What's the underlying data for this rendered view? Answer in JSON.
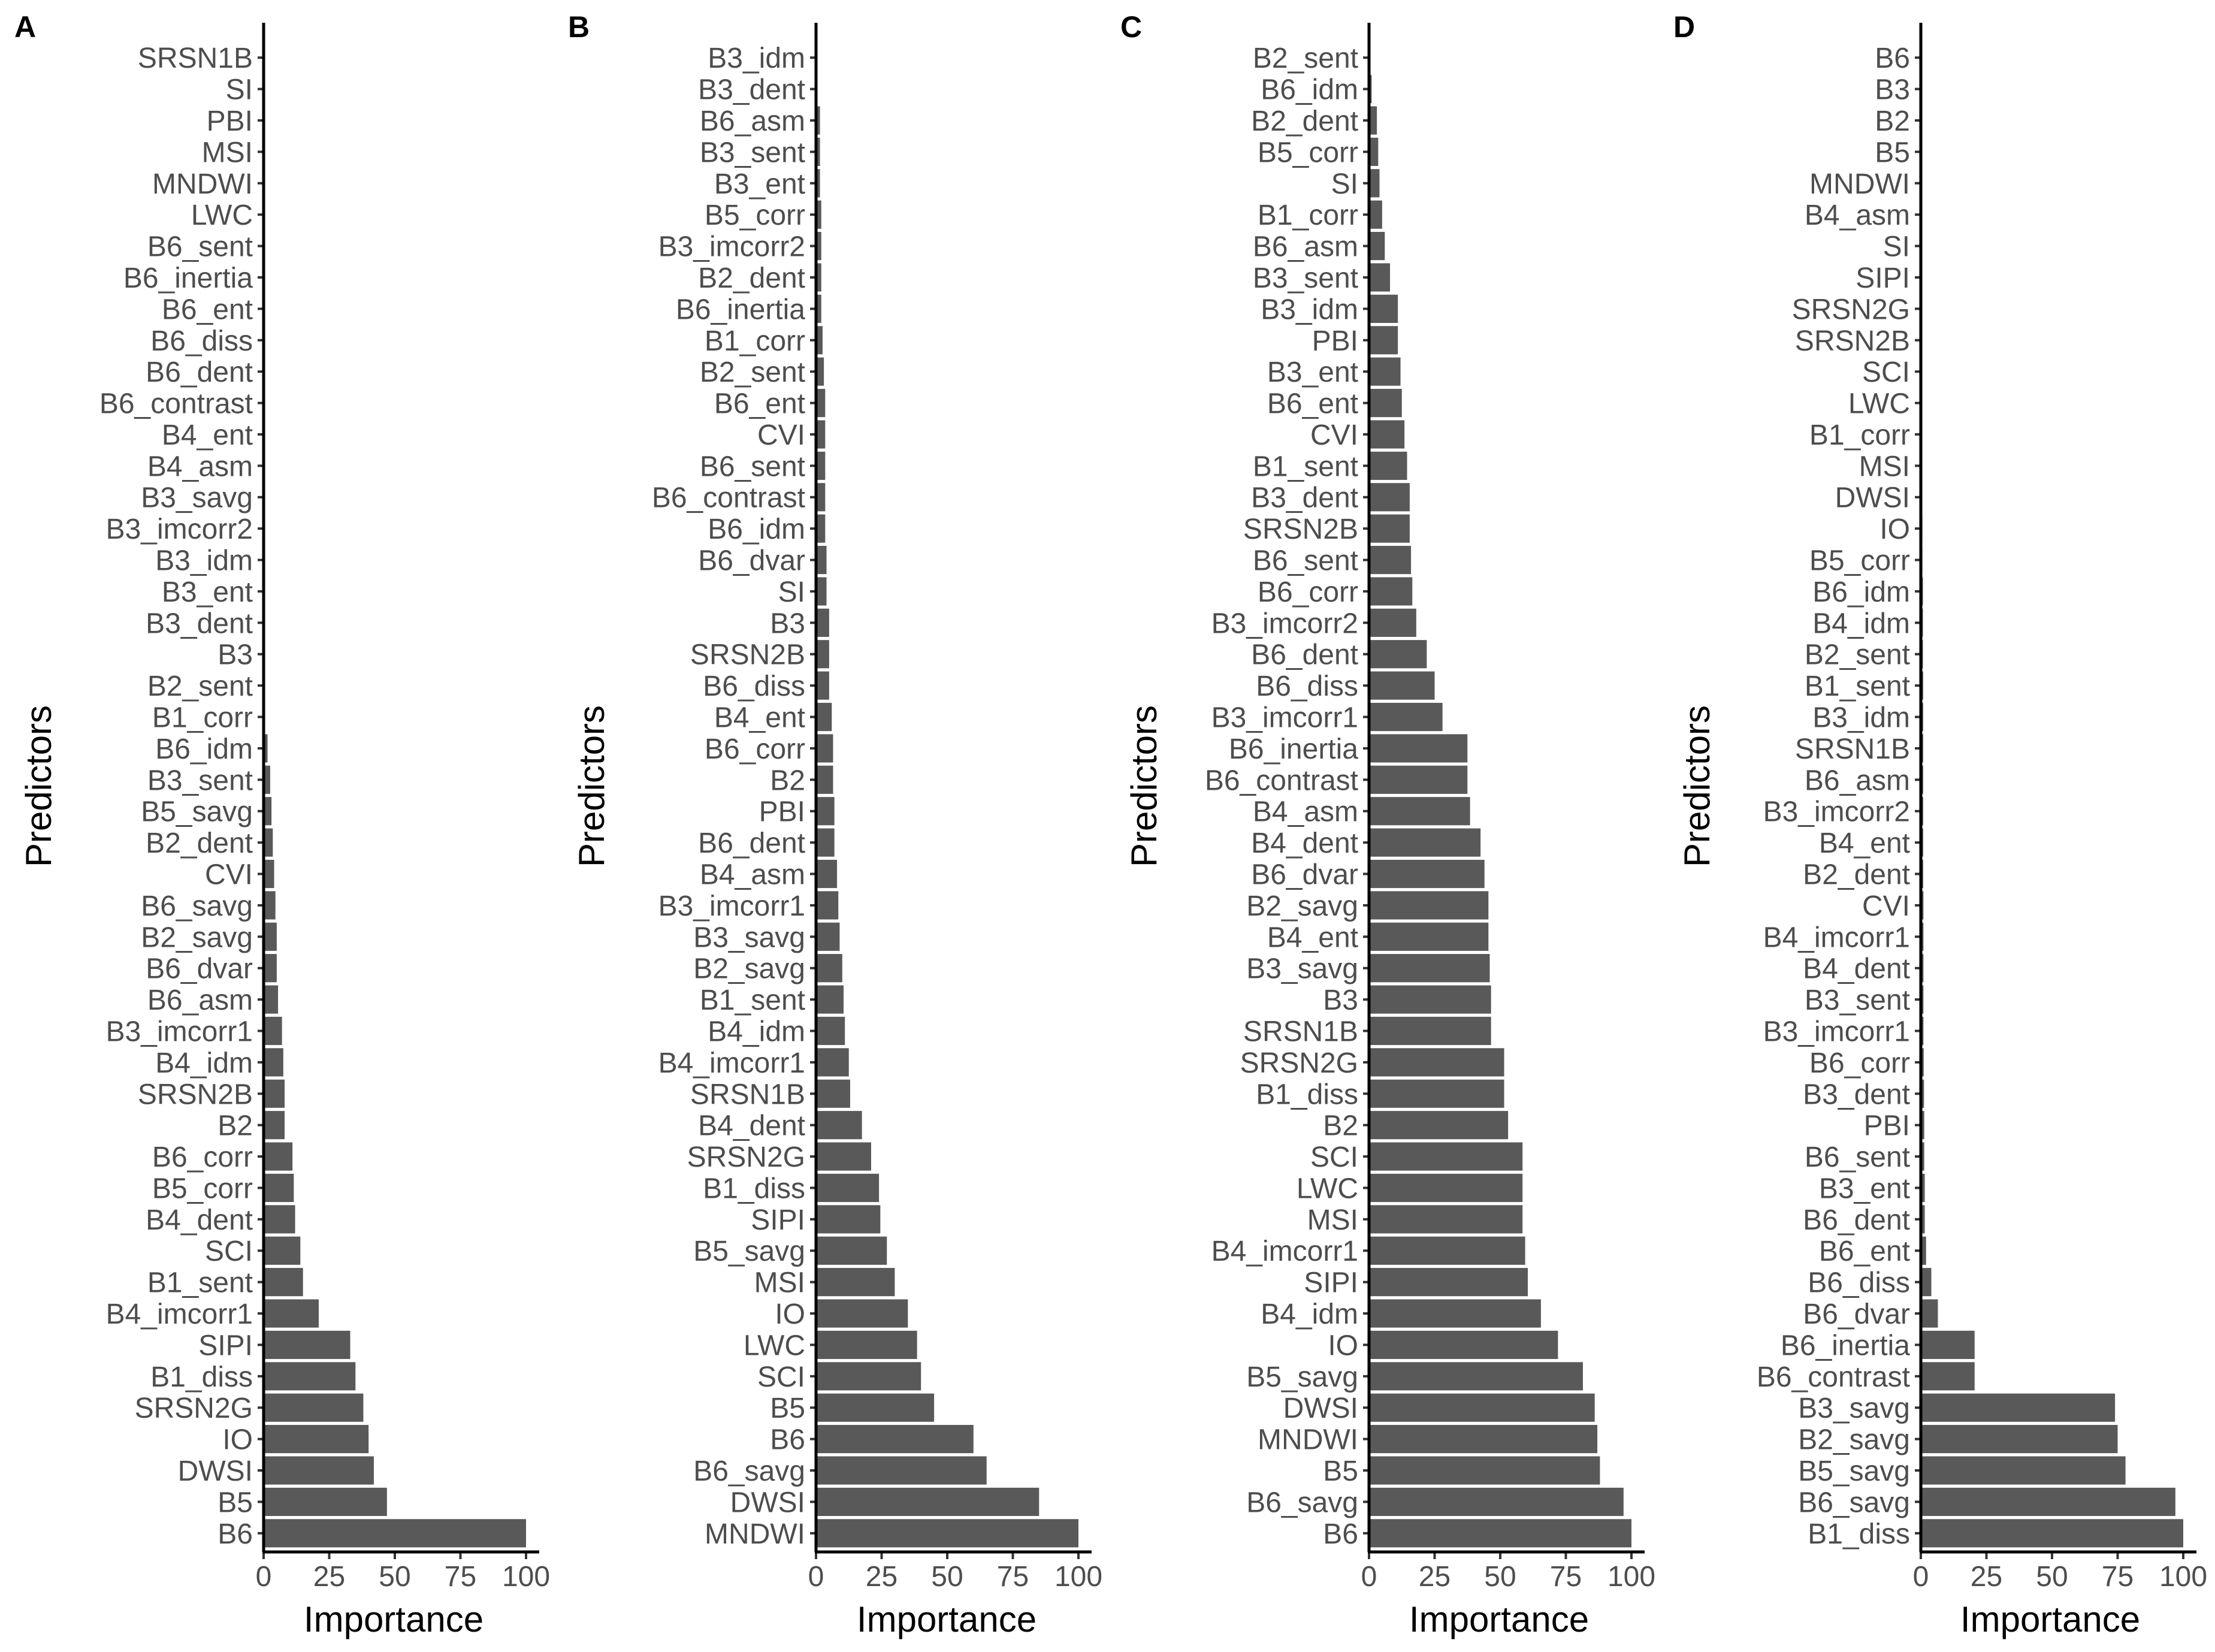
{
  "figure": {
    "x_axis_title": "Importance",
    "y_axis_title": "Predictors"
  },
  "colors": {
    "bar": "#595959",
    "axis": "#000000",
    "tick_text": "#4d4d4d"
  },
  "chart_data": [
    {
      "type": "bar",
      "orientation": "horizontal",
      "panel": "A",
      "xlabel": "Importance",
      "ylabel": "Predictors",
      "xlim": [
        0,
        100
      ],
      "xticks": [
        0,
        25,
        50,
        75,
        100
      ],
      "categories": [
        "SRSN1B",
        "SI",
        "PBI",
        "MSI",
        "MNDWI",
        "LWC",
        "B6_sent",
        "B6_inertia",
        "B6_ent",
        "B6_diss",
        "B6_dent",
        "B6_contrast",
        "B4_ent",
        "B4_asm",
        "B3_savg",
        "B3_imcorr2",
        "B3_idm",
        "B3_ent",
        "B3_dent",
        "B3",
        "B2_sent",
        "B1_corr",
        "B6_idm",
        "B3_sent",
        "B5_savg",
        "B2_dent",
        "CVI",
        "B6_savg",
        "B2_savg",
        "B6_dvar",
        "B6_asm",
        "B3_imcorr1",
        "B4_idm",
        "SRSN2B",
        "B2",
        "B6_corr",
        "B5_corr",
        "B4_dent",
        "SCI",
        "B1_sent",
        "B4_imcorr1",
        "SIPI",
        "B1_diss",
        "SRSN2G",
        "IO",
        "DWSI",
        "B5",
        "B6"
      ],
      "values": [
        0,
        0,
        0,
        0,
        0,
        0,
        0,
        0,
        0,
        0,
        0,
        0,
        0,
        0,
        0,
        0,
        0,
        0,
        0,
        0,
        0,
        0,
        1.5,
        2.5,
        3,
        3.5,
        4,
        4.5,
        5,
        5,
        5.5,
        7,
        7.5,
        8,
        8,
        11,
        11.5,
        12,
        14,
        15,
        21,
        33,
        35,
        38,
        40,
        42,
        47,
        100
      ]
    },
    {
      "type": "bar",
      "orientation": "horizontal",
      "panel": "B",
      "xlabel": "Importance",
      "ylabel": "Predictors",
      "xlim": [
        0,
        100
      ],
      "xticks": [
        0,
        25,
        50,
        75,
        100
      ],
      "categories": [
        "B3_idm",
        "B3_dent",
        "B6_asm",
        "B3_sent",
        "B3_ent",
        "B5_corr",
        "B3_imcorr2",
        "B2_dent",
        "B6_inertia",
        "B1_corr",
        "B2_sent",
        "B6_ent",
        "CVI",
        "B6_sent",
        "B6_contrast",
        "B6_idm",
        "B6_dvar",
        "SI",
        "B3",
        "SRSN2B",
        "B6_diss",
        "B4_ent",
        "B6_corr",
        "B2",
        "PBI",
        "B6_dent",
        "B4_asm",
        "B3_imcorr1",
        "B3_savg",
        "B2_savg",
        "B1_sent",
        "B4_idm",
        "B4_imcorr1",
        "SRSN1B",
        "B4_dent",
        "SRSN2G",
        "B1_diss",
        "SIPI",
        "B5_savg",
        "MSI",
        "IO",
        "LWC",
        "SCI",
        "B5",
        "B6",
        "B6_savg",
        "DWSI",
        "MNDWI"
      ],
      "values": [
        0,
        0,
        1.5,
        1.5,
        1.5,
        2,
        2,
        2,
        2,
        2.5,
        3,
        3.5,
        3.5,
        3.5,
        3.5,
        3.5,
        4,
        4,
        5,
        5,
        5,
        6,
        6.5,
        6.5,
        7,
        7,
        8,
        8.5,
        9,
        10,
        10.5,
        11,
        12.5,
        13,
        17.5,
        21,
        24,
        24.5,
        27,
        30,
        35,
        38.5,
        40,
        45,
        60,
        65,
        85,
        100
      ]
    },
    {
      "type": "bar",
      "orientation": "horizontal",
      "panel": "C",
      "xlabel": "Importance",
      "ylabel": "Predictors",
      "xlim": [
        0,
        100
      ],
      "xticks": [
        0,
        25,
        50,
        75,
        100
      ],
      "categories": [
        "B2_sent",
        "B6_idm",
        "B2_dent",
        "B5_corr",
        "SI",
        "B1_corr",
        "B6_asm",
        "B3_sent",
        "B3_idm",
        "PBI",
        "B3_ent",
        "B6_ent",
        "CVI",
        "B1_sent",
        "B3_dent",
        "SRSN2B",
        "B6_sent",
        "B6_corr",
        "B3_imcorr2",
        "B6_dent",
        "B6_diss",
        "B3_imcorr1",
        "B6_inertia",
        "B6_contrast",
        "B4_asm",
        "B4_dent",
        "B6_dvar",
        "B2_savg",
        "B4_ent",
        "B3_savg",
        "B3",
        "SRSN1B",
        "SRSN2G",
        "B1_diss",
        "B2",
        "SCI",
        "LWC",
        "MSI",
        "B4_imcorr1",
        "SIPI",
        "B4_idm",
        "IO",
        "B5_savg",
        "DWSI",
        "MNDWI",
        "B5",
        "B6_savg",
        "B6"
      ],
      "values": [
        0,
        1,
        3,
        3.5,
        4,
        5,
        6,
        8,
        11,
        11,
        12,
        12.5,
        13.5,
        14.5,
        15.5,
        15.5,
        16,
        16.5,
        18,
        22,
        25,
        28,
        37.5,
        37.5,
        38.5,
        42.5,
        44,
        45.5,
        45.5,
        46,
        46.5,
        46.5,
        51.5,
        51.5,
        53,
        58.5,
        58.5,
        58.5,
        59.5,
        60.5,
        65.5,
        72,
        81.5,
        86,
        87,
        88,
        97,
        100
      ]
    },
    {
      "type": "bar",
      "orientation": "horizontal",
      "panel": "D",
      "xlabel": "Importance",
      "ylabel": "Predictors",
      "xlim": [
        0,
        100
      ],
      "xticks": [
        0,
        25,
        50,
        75,
        100
      ],
      "categories": [
        "B6",
        "B3",
        "B2",
        "B5",
        "MNDWI",
        "B4_asm",
        "SI",
        "SIPI",
        "SRSN2G",
        "SRSN2B",
        "SCI",
        "LWC",
        "B1_corr",
        "MSI",
        "DWSI",
        "IO",
        "B5_corr",
        "B6_idm",
        "B4_idm",
        "B2_sent",
        "B1_sent",
        "B3_idm",
        "SRSN1B",
        "B6_asm",
        "B3_imcorr2",
        "B4_ent",
        "B2_dent",
        "CVI",
        "B4_imcorr1",
        "B4_dent",
        "B3_sent",
        "B3_imcorr1",
        "B6_corr",
        "B3_dent",
        "PBI",
        "B6_sent",
        "B3_ent",
        "B6_dent",
        "B6_ent",
        "B6_diss",
        "B6_dvar",
        "B6_inertia",
        "B6_contrast",
        "B3_savg",
        "B2_savg",
        "B5_savg",
        "B6_savg",
        "B1_diss"
      ],
      "values": [
        0,
        0,
        0,
        0,
        0.4,
        0.4,
        0.4,
        0.4,
        0.4,
        0.4,
        0.4,
        0.4,
        0.5,
        0.5,
        0.5,
        0.6,
        0.6,
        0.8,
        0.8,
        0.8,
        0.9,
        0.9,
        0.9,
        0.9,
        0.9,
        0.9,
        0.9,
        1,
        1,
        1,
        1,
        1,
        1.1,
        1.2,
        1.3,
        1.3,
        1.5,
        1.5,
        2,
        4,
        6.5,
        20.5,
        20.5,
        74,
        75,
        78,
        97,
        100
      ]
    }
  ]
}
